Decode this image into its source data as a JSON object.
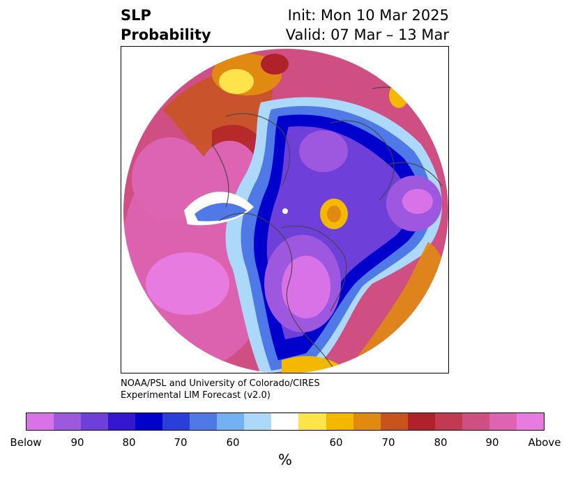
{
  "header": {
    "title_line1": "SLP",
    "title_line2": "Probability",
    "init_text": "Init: Mon 10 Mar 2025",
    "valid_text": "Valid: 07 Mar – 13 Mar"
  },
  "credit": {
    "line1": "NOAA/PSL and University of Colorado/CIRES",
    "line2": "Experimental LIM Forecast (v2.0)"
  },
  "colorbar": {
    "colors": [
      "#d972e6",
      "#9e58e0",
      "#6f3fd9",
      "#3517d0",
      "#0000cc",
      "#2a3fd9",
      "#4f79e6",
      "#72b2f2",
      "#acd9fa",
      "#ffffff",
      "#ffe34d",
      "#f5b800",
      "#e08a12",
      "#c8531c",
      "#b0222a",
      "#c23a52",
      "#cf4f82",
      "#dd63b3",
      "#e87be0"
    ],
    "tick_labels": [
      "Below",
      "90",
      "80",
      "70",
      "60",
      "60",
      "70",
      "80",
      "90",
      "Above"
    ],
    "unit": "%"
  },
  "map": {
    "projection": "north-polar-stereographic",
    "basemap": "coastlines-and-borders",
    "palette": {
      "strong_below": "#0000cc",
      "below": "#6f3fd9",
      "weak_below": "#acd9fa",
      "neutral": "#ffffff",
      "weak_above": "#f5b800",
      "above": "#c8531c",
      "strong_above": "#d972e6"
    }
  }
}
